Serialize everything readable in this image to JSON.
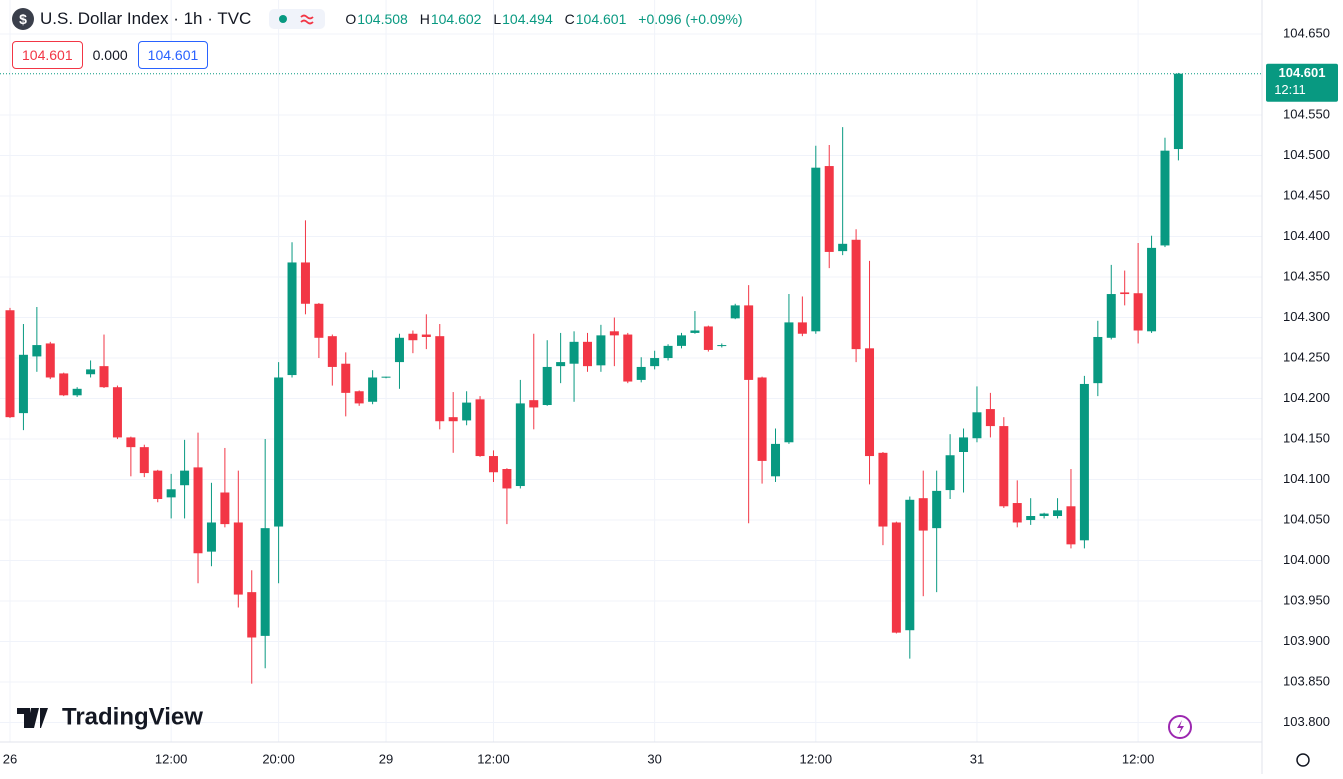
{
  "chart_data": {
    "type": "candlestick",
    "title": "U.S. Dollar Index · 1h · TVC",
    "icon": "$",
    "header": {
      "o_label": "O",
      "open": 104.508,
      "h_label": "H",
      "high": 104.602,
      "l_label": "L",
      "low": 104.494,
      "c_label": "C",
      "close": 104.601,
      "change": "+0.096 (+0.09%)"
    },
    "toolbar": {
      "bid": "104.601",
      "spread": "0.000",
      "ask": "104.601"
    },
    "last_price": {
      "value": 104.601,
      "label": "104.601",
      "countdown": "12:11"
    },
    "watermark": "TradingView",
    "up_color": "#089981",
    "down_color": "#f23645",
    "categories": [
      "26",
      null,
      null,
      null,
      null,
      null,
      null,
      null,
      null,
      null,
      null,
      null,
      "12:00",
      null,
      null,
      null,
      null,
      null,
      null,
      null,
      "20:00",
      null,
      null,
      null,
      null,
      null,
      null,
      null,
      "29",
      null,
      null,
      null,
      null,
      null,
      null,
      null,
      "12:00",
      null,
      null,
      null,
      null,
      null,
      null,
      null,
      null,
      null,
      null,
      null,
      "30",
      null,
      null,
      null,
      null,
      null,
      null,
      null,
      null,
      null,
      null,
      null,
      "12:00",
      null,
      null,
      null,
      null,
      null,
      null,
      null,
      null,
      null,
      null,
      null,
      "31",
      null,
      null,
      null,
      null,
      null,
      null,
      null,
      null,
      null,
      null,
      null,
      "12:00",
      null,
      null,
      null
    ],
    "ohlc": [
      [
        104.309,
        104.312,
        104.176,
        104.177
      ],
      [
        104.182,
        104.292,
        104.161,
        104.254
      ],
      [
        104.252,
        104.313,
        104.233,
        104.266
      ],
      [
        104.268,
        104.27,
        104.224,
        104.226
      ],
      [
        104.231,
        104.232,
        104.203,
        104.204
      ],
      [
        104.204,
        104.214,
        104.202,
        104.212
      ],
      [
        104.23,
        104.247,
        104.226,
        104.236
      ],
      [
        104.24,
        104.279,
        104.213,
        104.214
      ],
      [
        104.214,
        104.216,
        104.15,
        104.152
      ],
      [
        104.152,
        104.153,
        104.104,
        104.14
      ],
      [
        104.14,
        104.143,
        104.103,
        104.108
      ],
      [
        104.111,
        104.112,
        104.072,
        104.076
      ],
      [
        104.078,
        104.107,
        104.052,
        104.088
      ],
      [
        104.093,
        104.149,
        104.052,
        104.111
      ],
      [
        104.115,
        104.158,
        103.972,
        104.009
      ],
      [
        104.011,
        104.096,
        103.993,
        104.047
      ],
      [
        104.084,
        104.139,
        104.041,
        104.045
      ],
      [
        104.047,
        104.111,
        103.942,
        103.958
      ],
      [
        103.961,
        103.988,
        103.848,
        103.905
      ],
      [
        103.907,
        104.15,
        103.867,
        104.04
      ],
      [
        104.042,
        104.245,
        103.972,
        104.226
      ],
      [
        104.229,
        104.393,
        104.226,
        104.368
      ],
      [
        104.368,
        104.42,
        104.304,
        104.317
      ],
      [
        104.317,
        104.318,
        104.25,
        104.275
      ],
      [
        104.277,
        104.279,
        104.216,
        104.239
      ],
      [
        104.243,
        104.257,
        104.178,
        104.207
      ],
      [
        104.209,
        104.21,
        104.191,
        104.194
      ],
      [
        104.196,
        104.235,
        104.193,
        104.226
      ],
      [
        104.226,
        104.227,
        104.225,
        104.227
      ],
      [
        104.245,
        104.28,
        104.212,
        104.275
      ],
      [
        104.28,
        104.284,
        104.256,
        104.272
      ],
      [
        104.279,
        104.304,
        104.261,
        104.276
      ],
      [
        104.277,
        104.292,
        104.162,
        104.172
      ],
      [
        104.177,
        104.208,
        104.133,
        104.172
      ],
      [
        104.173,
        104.209,
        104.167,
        104.195
      ],
      [
        104.199,
        104.203,
        104.128,
        104.129
      ],
      [
        104.129,
        104.136,
        104.097,
        104.109
      ],
      [
        104.113,
        104.114,
        104.045,
        104.089
      ],
      [
        104.092,
        104.223,
        104.089,
        104.194
      ],
      [
        104.198,
        104.28,
        104.162,
        104.189
      ],
      [
        104.192,
        104.272,
        104.191,
        104.239
      ],
      [
        104.24,
        104.281,
        104.219,
        104.245
      ],
      [
        104.243,
        104.283,
        104.196,
        104.27
      ],
      [
        104.27,
        104.281,
        104.233,
        104.24
      ],
      [
        104.241,
        104.291,
        104.233,
        104.278
      ],
      [
        104.283,
        104.3,
        104.24,
        104.278
      ],
      [
        104.279,
        104.281,
        104.219,
        104.221
      ],
      [
        104.223,
        104.251,
        104.22,
        104.239
      ],
      [
        104.24,
        104.259,
        104.236,
        104.25
      ],
      [
        104.25,
        104.267,
        104.247,
        104.265
      ],
      [
        104.265,
        104.281,
        104.262,
        104.278
      ],
      [
        104.281,
        104.308,
        104.28,
        104.284
      ],
      [
        104.289,
        104.29,
        104.258,
        104.26
      ],
      [
        104.265,
        104.268,
        104.263,
        104.266
      ],
      [
        104.299,
        104.317,
        104.298,
        104.315
      ],
      [
        104.315,
        104.34,
        104.046,
        104.223
      ],
      [
        104.226,
        104.227,
        104.095,
        104.123
      ],
      [
        104.104,
        104.163,
        104.097,
        104.144
      ],
      [
        104.146,
        104.329,
        104.144,
        104.294
      ],
      [
        104.294,
        104.326,
        104.277,
        104.28
      ],
      [
        104.283,
        104.512,
        104.28,
        104.485
      ],
      [
        104.487,
        104.513,
        104.361,
        104.381
      ],
      [
        104.382,
        104.535,
        104.377,
        104.391
      ],
      [
        104.396,
        104.409,
        104.245,
        104.261
      ],
      [
        104.262,
        104.37,
        104.094,
        104.129
      ],
      [
        104.133,
        104.134,
        104.019,
        104.042
      ],
      [
        104.047,
        104.048,
        103.91,
        103.911
      ],
      [
        103.914,
        104.079,
        103.879,
        104.075
      ],
      [
        104.077,
        104.111,
        103.956,
        104.037
      ],
      [
        104.04,
        104.111,
        103.961,
        104.086
      ],
      [
        104.087,
        104.156,
        104.076,
        104.13
      ],
      [
        104.134,
        104.163,
        104.084,
        104.152
      ],
      [
        104.151,
        104.215,
        104.146,
        104.183
      ],
      [
        104.187,
        104.207,
        104.152,
        104.166
      ],
      [
        104.166,
        104.177,
        104.065,
        104.067
      ],
      [
        104.071,
        104.099,
        104.041,
        104.047
      ],
      [
        104.05,
        104.077,
        104.044,
        104.055
      ],
      [
        104.055,
        104.059,
        104.052,
        104.058
      ],
      [
        104.055,
        104.077,
        104.052,
        104.062
      ],
      [
        104.067,
        104.113,
        104.015,
        104.02
      ],
      [
        104.025,
        104.228,
        104.015,
        104.218
      ],
      [
        104.219,
        104.296,
        104.203,
        104.276
      ],
      [
        104.275,
        104.365,
        104.273,
        104.329
      ],
      [
        104.331,
        104.358,
        104.315,
        104.329
      ],
      [
        104.33,
        104.392,
        104.268,
        104.284
      ],
      [
        104.283,
        104.401,
        104.281,
        104.386
      ],
      [
        104.389,
        104.522,
        104.387,
        104.506
      ],
      [
        104.508,
        104.602,
        104.494,
        104.601
      ]
    ],
    "ylim": [
      103.776,
      104.692
    ],
    "yticks": [
      {
        "value": 103.8,
        "label": "103.800"
      },
      {
        "value": 103.85,
        "label": "103.850"
      },
      {
        "value": 103.9,
        "label": "103.900"
      },
      {
        "value": 103.95,
        "label": "103.950"
      },
      {
        "value": 104,
        "label": "104.000"
      },
      {
        "value": 104.05,
        "label": "104.050"
      },
      {
        "value": 104.1,
        "label": "104.100"
      },
      {
        "value": 104.15,
        "label": "104.150"
      },
      {
        "value": 104.2,
        "label": "104.200"
      },
      {
        "value": 104.25,
        "label": "104.250"
      },
      {
        "value": 104.3,
        "label": "104.300"
      },
      {
        "value": 104.35,
        "label": "104.350"
      },
      {
        "value": 104.4,
        "label": "104.400"
      },
      {
        "value": 104.45,
        "label": "104.450"
      },
      {
        "value": 104.5,
        "label": "104.500"
      },
      {
        "value": 104.55,
        "label": "104.550"
      },
      {
        "value": 104.65,
        "label": "104.650"
      }
    ],
    "grid": true
  }
}
